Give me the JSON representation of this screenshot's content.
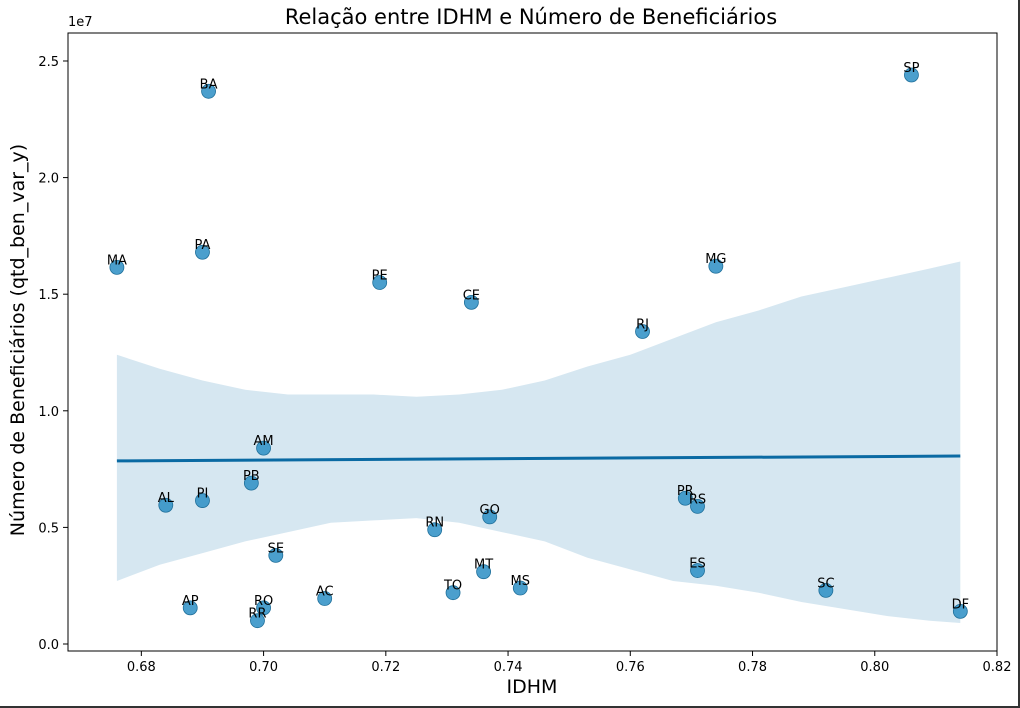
{
  "chart_data": {
    "type": "scatter",
    "title": "Relação entre IDHM e Número de Beneficiários",
    "xlabel": "IDHM",
    "ylabel": "Número de Beneficiários (qtd_ben_var_y)",
    "y_offset_text": "1e7",
    "xlim": [
      0.668,
      0.82
    ],
    "ylim": [
      -0.03,
      2.62
    ],
    "y_scale_unit": "1e7",
    "x_ticks": [
      0.68,
      0.7,
      0.72,
      0.74,
      0.76,
      0.78,
      0.8,
      0.82
    ],
    "x_tick_labels": [
      "0.68",
      "0.70",
      "0.72",
      "0.74",
      "0.76",
      "0.78",
      "0.80",
      "0.82"
    ],
    "y_ticks": [
      0.0,
      0.5,
      1.0,
      1.5,
      2.0,
      2.5
    ],
    "y_tick_labels": [
      "0.0",
      "0.5",
      "1.0",
      "1.5",
      "2.0",
      "2.5"
    ],
    "points": [
      {
        "label": "BA",
        "x": 0.691,
        "y": 2.37
      },
      {
        "label": "SP",
        "x": 0.806,
        "y": 2.44
      },
      {
        "label": "MA",
        "x": 0.676,
        "y": 1.615
      },
      {
        "label": "PA",
        "x": 0.69,
        "y": 1.68
      },
      {
        "label": "MG",
        "x": 0.774,
        "y": 1.62
      },
      {
        "label": "PE",
        "x": 0.719,
        "y": 1.55
      },
      {
        "label": "CE",
        "x": 0.734,
        "y": 1.465
      },
      {
        "label": "RJ",
        "x": 0.762,
        "y": 1.34
      },
      {
        "label": "AM",
        "x": 0.7,
        "y": 0.84
      },
      {
        "label": "PB",
        "x": 0.698,
        "y": 0.69
      },
      {
        "label": "AL",
        "x": 0.684,
        "y": 0.595
      },
      {
        "label": "PI",
        "x": 0.69,
        "y": 0.615
      },
      {
        "label": "PR",
        "x": 0.769,
        "y": 0.625
      },
      {
        "label": "RS",
        "x": 0.771,
        "y": 0.59
      },
      {
        "label": "GO",
        "x": 0.737,
        "y": 0.545
      },
      {
        "label": "RN",
        "x": 0.728,
        "y": 0.49
      },
      {
        "label": "SE",
        "x": 0.702,
        "y": 0.38
      },
      {
        "label": "MT",
        "x": 0.736,
        "y": 0.31
      },
      {
        "label": "ES",
        "x": 0.771,
        "y": 0.315
      },
      {
        "label": "MS",
        "x": 0.742,
        "y": 0.24
      },
      {
        "label": "TO",
        "x": 0.731,
        "y": 0.22
      },
      {
        "label": "SC",
        "x": 0.792,
        "y": 0.23
      },
      {
        "label": "AC",
        "x": 0.71,
        "y": 0.195
      },
      {
        "label": "AP",
        "x": 0.688,
        "y": 0.155
      },
      {
        "label": "RO",
        "x": 0.7,
        "y": 0.155
      },
      {
        "label": "RR",
        "x": 0.699,
        "y": 0.1
      },
      {
        "label": "DF",
        "x": 0.814,
        "y": 0.14
      }
    ],
    "regression": {
      "x": [
        0.676,
        0.814
      ],
      "y": [
        0.785,
        0.806
      ]
    },
    "confidence_band": {
      "x": [
        0.676,
        0.683,
        0.69,
        0.697,
        0.704,
        0.711,
        0.718,
        0.725,
        0.732,
        0.739,
        0.746,
        0.753,
        0.76,
        0.767,
        0.774,
        0.781,
        0.788,
        0.795,
        0.802,
        0.809,
        0.814
      ],
      "upper": [
        1.24,
        1.18,
        1.13,
        1.09,
        1.07,
        1.07,
        1.07,
        1.06,
        1.07,
        1.09,
        1.13,
        1.19,
        1.24,
        1.31,
        1.38,
        1.43,
        1.49,
        1.53,
        1.57,
        1.61,
        1.64
      ],
      "lower": [
        0.27,
        0.34,
        0.39,
        0.44,
        0.48,
        0.52,
        0.53,
        0.54,
        0.52,
        0.48,
        0.44,
        0.37,
        0.32,
        0.27,
        0.25,
        0.22,
        0.18,
        0.15,
        0.12,
        0.1,
        0.09
      ]
    },
    "colors": {
      "points": "#2c8ec4",
      "line": "#0a6aa3",
      "band": "#d6e7f1"
    },
    "grid": false,
    "legend": "none"
  }
}
